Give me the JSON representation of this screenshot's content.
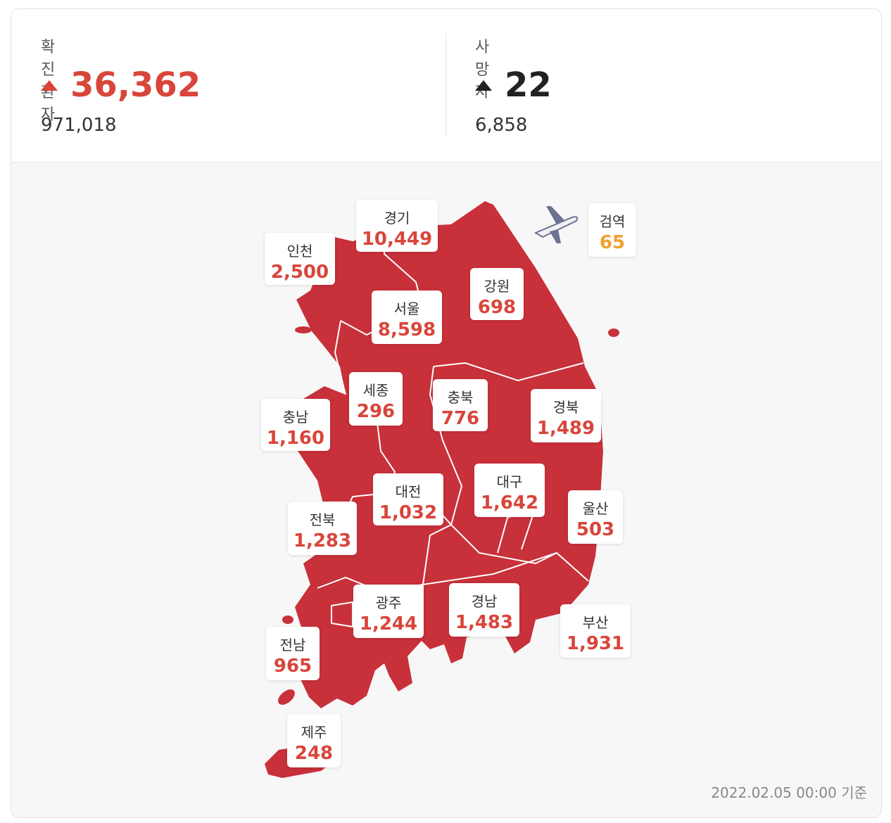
{
  "stats": [
    {
      "label": "확진환자",
      "change": "36,362",
      "total": "971,018"
    },
    {
      "label": "사망자",
      "change": "22",
      "total": "6,858"
    }
  ],
  "regions": [
    {
      "name": "경기",
      "value": "10,449"
    },
    {
      "name": "인천",
      "value": "2,500"
    },
    {
      "name": "서울",
      "value": "8,598"
    },
    {
      "name": "강원",
      "value": "698"
    },
    {
      "name": "검역",
      "value": "65"
    },
    {
      "name": "세종",
      "value": "296"
    },
    {
      "name": "충북",
      "value": "776"
    },
    {
      "name": "경북",
      "value": "1,489"
    },
    {
      "name": "충남",
      "value": "1,160"
    },
    {
      "name": "대전",
      "value": "1,032"
    },
    {
      "name": "대구",
      "value": "1,642"
    },
    {
      "name": "울산",
      "value": "503"
    },
    {
      "name": "전북",
      "value": "1,283"
    },
    {
      "name": "광주",
      "value": "1,244"
    },
    {
      "name": "경남",
      "value": "1,483"
    },
    {
      "name": "부산",
      "value": "1,931"
    },
    {
      "name": "전남",
      "value": "965"
    },
    {
      "name": "제주",
      "value": "248"
    }
  ],
  "timestamp": "2022.02.05 00:00 기준"
}
